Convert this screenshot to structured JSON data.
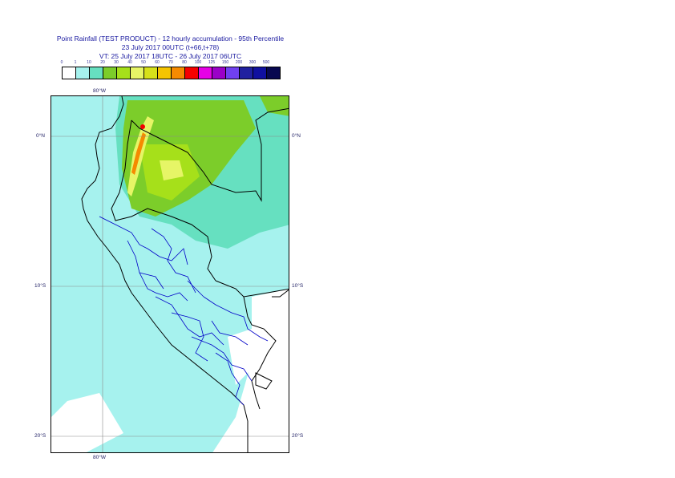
{
  "title": {
    "line1": "Point Rainfall (TEST PRODUCT) - 12 hourly accumulation - 95th Percentile",
    "line2": "23 July 2017 00UTC (t+66,t+78)",
    "line3": "VT: 25 July 2017 18UTC - 26 July 2017 06UTC"
  },
  "legend": {
    "labels": [
      "0",
      "1",
      "10",
      "20",
      "30",
      "40",
      "50",
      "60",
      "70",
      "80",
      "100",
      "125",
      "150",
      "200",
      "300",
      "500"
    ],
    "colors": [
      "#ffffff",
      "#a6f2ee",
      "#66e0c0",
      "#7ccd2a",
      "#a6e01a",
      "#e6f566",
      "#d6e01a",
      "#f5c400",
      "#f58a00",
      "#f50000",
      "#e600e6",
      "#9b00c8",
      "#7040f0",
      "#2020a0",
      "#1010a0",
      "#080850"
    ]
  },
  "axes": {
    "top_lon": "80°W",
    "bottom_lon": "80°W",
    "lat_0_left": "0°N",
    "lat_0_right": "0°N",
    "lat_10_left": "10°S",
    "lat_10_right": "10°S",
    "lat_20_left": "20°S",
    "lat_20_right": "20°S"
  },
  "colors": {
    "light_cyan": "#a6f2ee",
    "teal": "#66e0c0",
    "green": "#7ccd2a",
    "yellow_green": "#a6e01a",
    "pale_yellow": "#e6f566",
    "orange": "#f58a00",
    "red": "#f50000",
    "coast_black": "#000000",
    "admin_blue": "#0000c8",
    "grid": "#8a8a8a"
  }
}
